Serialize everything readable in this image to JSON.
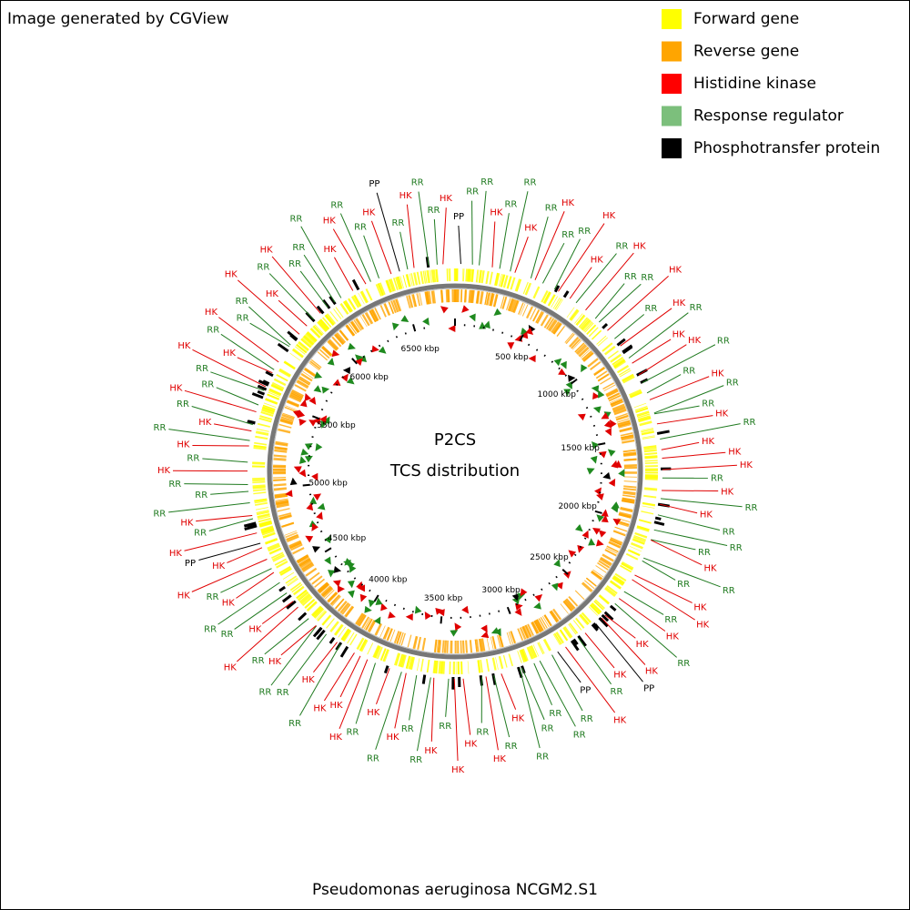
{
  "header": {
    "text": "Image generated by CGView"
  },
  "legend": {
    "items": [
      {
        "label": "Forward gene",
        "color": "#ffff00"
      },
      {
        "label": "Reverse gene",
        "color": "#ffa500"
      },
      {
        "label": "Histidine kinase",
        "color": "#ff0000"
      },
      {
        "label": "Response regulator",
        "color": "#7cbf7c"
      },
      {
        "label": "Phosphotransfer protein",
        "color": "#000000"
      }
    ]
  },
  "center": {
    "title": "P2CS",
    "subtitle": "TCS distribution"
  },
  "ticks": [
    "500 kbp",
    "1000 kbp",
    "1500 kbp",
    "2000 kbp",
    "2500 kbp",
    "3000 kbp",
    "3500 kbp",
    "4000 kbp",
    "4500 kbp",
    "5000 kbp",
    "5500 kbp",
    "6000 kbp",
    "6500 kbp"
  ],
  "label_colors": {
    "HK": "#e00000",
    "RR": "#1f7a1f",
    "PP": "#000000"
  },
  "features": [
    "PP",
    "RR",
    "RR",
    "HK",
    "RR",
    "RR",
    "HK",
    "RR",
    "HK",
    "RR",
    "RR",
    "HK",
    "HK",
    "RR",
    "HK",
    "RR",
    "RR",
    "HK",
    "RR",
    "HK",
    "RR",
    "HK",
    "HK",
    "RR",
    "RR",
    "HK",
    "RR",
    "RR",
    "HK",
    "RR",
    "HK",
    "HK",
    "HK",
    "RR",
    "HK",
    "RR",
    "HK",
    "RR",
    "RR",
    "RR",
    "HK",
    "RR",
    "RR",
    "HK",
    "HK",
    "RR",
    "HK",
    "RR",
    "HK",
    "HK",
    "PP",
    "HK",
    "RR",
    "HK",
    "PP",
    "RR",
    "RR",
    "RR",
    "RR",
    "RR",
    "HK",
    "RR",
    "HK",
    "RR",
    "HK",
    "HK",
    "RR",
    "HK",
    "RR",
    "RR",
    "HK",
    "RR",
    "HK",
    "RR",
    "HK",
    "HK",
    "HK",
    "RR",
    "HK",
    "RR",
    "RR",
    "HK",
    "RR",
    "HK",
    "HK",
    "RR",
    "RR",
    "HK",
    "RR",
    "HK",
    "HK",
    "PP",
    "HK",
    "RR",
    "HK",
    "RR",
    "RR",
    "RR",
    "HK",
    "RR",
    "HK",
    "RR",
    "HK",
    "RR",
    "HK",
    "RR",
    "RR",
    "HK",
    "HK",
    "RR",
    "HK",
    "RR",
    "RR",
    "HK",
    "HK",
    "RR",
    "HK",
    "RR",
    "RR",
    "RR",
    "HK",
    "HK",
    "RR",
    "RR",
    "HK",
    "PP",
    "RR",
    "HK",
    "RR",
    "RR",
    "HK"
  ],
  "caption": {
    "text": "Pseudomonas aeruginosa NCGM2.S1"
  }
}
